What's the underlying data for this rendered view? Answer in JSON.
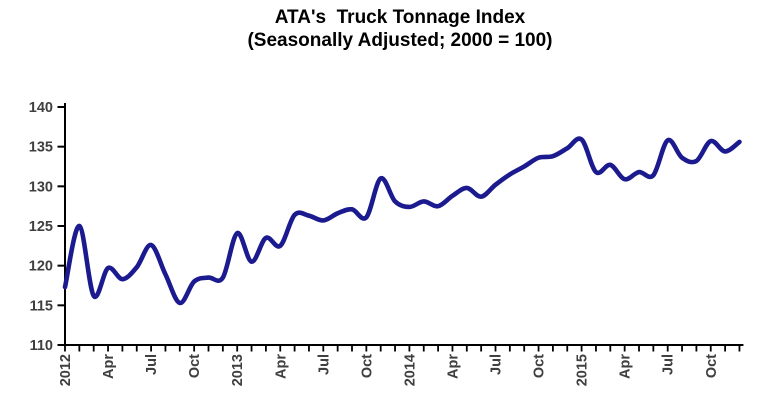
{
  "chart_data": {
    "type": "line",
    "title": "ATA's  Truck Tonnage Index",
    "subtitle": "(Seasonally Adjusted; 2000 = 100)",
    "x_start": "Jan 2012",
    "x_end": "Dec 2015",
    "frequency": "monthly",
    "months": [
      "Jan 2012",
      "Feb 2012",
      "Mar 2012",
      "Apr 2012",
      "May 2012",
      "Jun 2012",
      "Jul 2012",
      "Aug 2012",
      "Sep 2012",
      "Oct 2012",
      "Nov 2012",
      "Dec 2012",
      "Jan 2013",
      "Feb 2013",
      "Mar 2013",
      "Apr 2013",
      "May 2013",
      "Jun 2013",
      "Jul 2013",
      "Aug 2013",
      "Sep 2013",
      "Oct 2013",
      "Nov 2013",
      "Dec 2013",
      "Jan 2014",
      "Feb 2014",
      "Mar 2014",
      "Apr 2014",
      "May 2014",
      "Jun 2014",
      "Jul 2014",
      "Aug 2014",
      "Sep 2014",
      "Oct 2014",
      "Nov 2014",
      "Dec 2014",
      "Jan 2015",
      "Feb 2015",
      "Mar 2015",
      "Apr 2015",
      "May 2015",
      "Jun 2015",
      "Jul 2015",
      "Aug 2015",
      "Sep 2015",
      "Oct 2015",
      "Nov 2015",
      "Dec 2015"
    ],
    "series": [
      {
        "name": "Truck Tonnage Index",
        "color": "#1b1b8f",
        "values": [
          117.3,
          125.0,
          116.2,
          119.7,
          118.3,
          119.8,
          122.6,
          118.9,
          115.3,
          118.0,
          118.5,
          118.5,
          124.1,
          120.5,
          123.5,
          122.5,
          126.4,
          126.3,
          125.7,
          126.6,
          127.1,
          126.1,
          131.0,
          128.1,
          127.4,
          128.1,
          127.5,
          128.8,
          129.8,
          128.7,
          130.2,
          131.5,
          132.5,
          133.6,
          133.8,
          134.8,
          135.9,
          131.8,
          132.7,
          130.9,
          131.8,
          131.4,
          135.8,
          133.6,
          133.2,
          135.7,
          134.4,
          135.6
        ]
      }
    ],
    "ylim": [
      110,
      140
    ],
    "ytick_step": 5,
    "ytick_labels": [
      "110",
      "115",
      "120",
      "125",
      "130",
      "135",
      "140"
    ],
    "xtick_labels": [
      "2012",
      "Apr",
      "Jul",
      "Oct",
      "2013",
      "Apr",
      "Jul",
      "Oct",
      "2014",
      "Apr",
      "Jul",
      "Oct",
      "2015",
      "Apr",
      "Jul",
      "Oct"
    ],
    "xtick_label_every": 3,
    "grid": false,
    "legend": "none",
    "axis_color": "#000000",
    "tick_label_color": "#3f3f3f",
    "background_color": "#ffffff"
  }
}
